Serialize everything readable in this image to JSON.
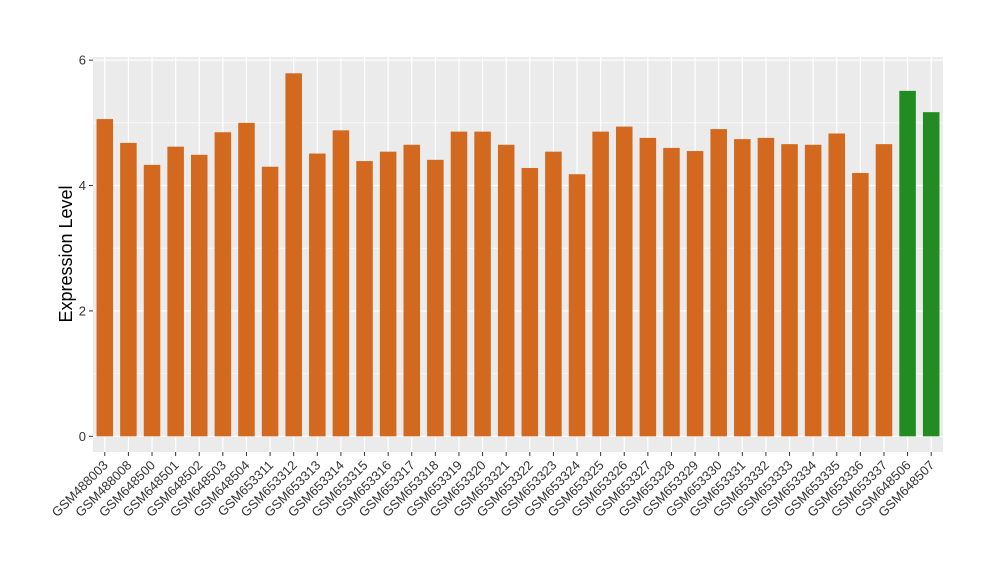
{
  "chart_data": {
    "type": "bar",
    "title": "",
    "xlabel": "",
    "ylabel": "Expression Level",
    "ylim": [
      -0.25,
      6.05
    ],
    "yticks": [
      0,
      2,
      4,
      6
    ],
    "grid": true,
    "legend": "none",
    "colors": {
      "default": "#d2691e",
      "highlight": "#228b22",
      "panel": "#ebebeb",
      "gridline": "#ffffff"
    },
    "categories": [
      "GSM488003",
      "GSM488008",
      "GSM648500",
      "GSM648501",
      "GSM648502",
      "GSM648503",
      "GSM648504",
      "GSM653311",
      "GSM653312",
      "GSM653313",
      "GSM653314",
      "GSM653315",
      "GSM653316",
      "GSM653317",
      "GSM653318",
      "GSM653319",
      "GSM653320",
      "GSM653321",
      "GSM653322",
      "GSM653323",
      "GSM653324",
      "GSM653325",
      "GSM653326",
      "GSM653327",
      "GSM653328",
      "GSM653329",
      "GSM653330",
      "GSM653331",
      "GSM653332",
      "GSM653333",
      "GSM653334",
      "GSM653335",
      "GSM653336",
      "GSM653337",
      "GSM648506",
      "GSM648507"
    ],
    "values": [
      5.06,
      4.68,
      4.33,
      4.62,
      4.49,
      4.85,
      5.0,
      4.3,
      5.79,
      4.51,
      4.88,
      4.39,
      4.54,
      4.65,
      4.41,
      4.86,
      4.86,
      4.65,
      4.28,
      4.54,
      4.18,
      4.86,
      4.94,
      4.76,
      4.6,
      4.55,
      4.9,
      4.74,
      4.76,
      4.66,
      4.65,
      4.83,
      4.2,
      4.66,
      5.51,
      5.17
    ],
    "group": [
      "a",
      "a",
      "a",
      "a",
      "a",
      "a",
      "a",
      "a",
      "a",
      "a",
      "a",
      "a",
      "a",
      "a",
      "a",
      "a",
      "a",
      "a",
      "a",
      "a",
      "a",
      "a",
      "a",
      "a",
      "a",
      "a",
      "a",
      "a",
      "a",
      "a",
      "a",
      "a",
      "a",
      "a",
      "b",
      "b"
    ]
  }
}
